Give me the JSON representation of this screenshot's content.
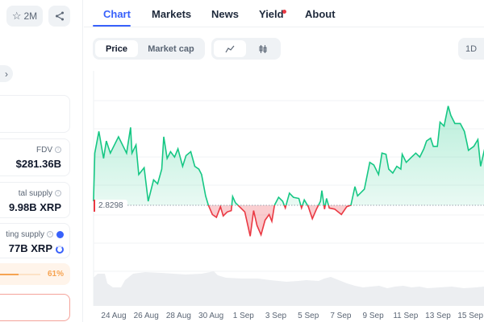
{
  "sidebar": {
    "watch_button": {
      "icon": "star-icon",
      "label": "2M"
    },
    "share_button": {
      "icon": "share-icon"
    },
    "next_button": {
      "icon": "chevron-right-icon",
      "label": "›"
    },
    "stats": [
      {
        "label": "FDV",
        "value": "$281.36B"
      },
      {
        "label": "tal supply",
        "value": "9.98B XRP"
      },
      {
        "label": "ting supply",
        "value": "77B XRP"
      }
    ],
    "progress": {
      "percent": 61,
      "label": "61%",
      "color": "#f6a351"
    }
  },
  "tabs": [
    {
      "label": "Chart",
      "active": true
    },
    {
      "label": "Markets"
    },
    {
      "label": "News"
    },
    {
      "label": "Yield",
      "badge": true
    },
    {
      "label": "About"
    }
  ],
  "toolbar": {
    "price": "Price",
    "market_cap": "Market cap",
    "line_icon": "line-chart-icon",
    "candle_icon": "candlestick-icon",
    "range": "1D"
  },
  "chart_data": {
    "type": "line",
    "baseline": 2.8298,
    "baseline_label": "2.8298",
    "up_color": "#16c784",
    "down_color": "#ea3943",
    "x_ticks": [
      "24 Aug",
      "26 Aug",
      "28 Aug",
      "30 Aug",
      "1 Sep",
      "3 Sep",
      "5 Sep",
      "7 Sep",
      "9 Sep",
      "11 Sep",
      "13 Sep",
      "15 Sep"
    ],
    "points": [
      [
        "22 Aug 18:00",
        2.844
      ],
      [
        "22 Aug 20:00",
        3.015
      ],
      [
        "23 Aug 02:00",
        3.092
      ],
      [
        "23 Aug 09:00",
        2.996
      ],
      [
        "23 Aug 13:00",
        3.058
      ],
      [
        "23 Aug 19:00",
        3.015
      ],
      [
        "24 Aug 07:00",
        3.073
      ],
      [
        "24 Aug 19:00",
        3.015
      ],
      [
        "25 Aug 01:00",
        3.106
      ],
      [
        "25 Aug 03:00",
        3.015
      ],
      [
        "25 Aug 09:00",
        3.044
      ],
      [
        "25 Aug 13:00",
        2.939
      ],
      [
        "25 Aug 21:00",
        2.963
      ],
      [
        "26 Aug 03:00",
        2.844
      ],
      [
        "26 Aug 11:00",
        2.92
      ],
      [
        "26 Aug 17:00",
        2.906
      ],
      [
        "26 Aug 23:00",
        2.958
      ],
      [
        "27 Aug 02:00",
        3.073
      ],
      [
        "27 Aug 07:00",
        2.996
      ],
      [
        "27 Aug 12:00",
        3.02
      ],
      [
        "27 Aug 18:00",
        3.001
      ],
      [
        "27 Aug 23:00",
        3.03
      ],
      [
        "28 Aug 06:00",
        2.968
      ],
      [
        "28 Aug 11:00",
        3.006
      ],
      [
        "28 Aug 18:00",
        3.02
      ],
      [
        "29 Aug 00:00",
        2.968
      ],
      [
        "29 Aug 06:00",
        2.958
      ],
      [
        "29 Aug 10:00",
        2.939
      ],
      [
        "29 Aug 16:00",
        2.863
      ],
      [
        "29 Aug 20:00",
        2.83
      ],
      [
        "30 Aug 02:00",
        2.797
      ],
      [
        "30 Aug 08:00",
        2.787
      ],
      [
        "30 Aug 14:00",
        2.825
      ],
      [
        "30 Aug 18:00",
        2.792
      ],
      [
        "31 Aug 00:00",
        2.806
      ],
      [
        "31 Aug 06:00",
        2.811
      ],
      [
        "31 Aug 08:00",
        2.861
      ],
      [
        "31 Aug 12:00",
        2.839
      ],
      [
        "31 Aug 18:00",
        2.825
      ],
      [
        "1 Sep 02:00",
        2.806
      ],
      [
        "1 Sep 10:00",
        2.72
      ],
      [
        "1 Sep 15:00",
        2.811
      ],
      [
        "1 Sep 20:00",
        2.758
      ],
      [
        "2 Sep 02:00",
        2.725
      ],
      [
        "2 Sep 08:00",
        2.777
      ],
      [
        "2 Sep 14:00",
        2.797
      ],
      [
        "2 Sep 18:00",
        2.773
      ],
      [
        "2 Sep 22:00",
        2.83
      ],
      [
        "3 Sep 04:00",
        2.858
      ],
      [
        "3 Sep 10:00",
        2.844
      ],
      [
        "3 Sep 14:00",
        2.82
      ],
      [
        "3 Sep 20:00",
        2.873
      ],
      [
        "4 Sep 02:00",
        2.858
      ],
      [
        "4 Sep 10:00",
        2.854
      ],
      [
        "4 Sep 14:00",
        2.82
      ],
      [
        "4 Sep 18:00",
        2.849
      ],
      [
        "5 Sep 00:00",
        2.825
      ],
      [
        "5 Sep 06:00",
        2.782
      ],
      [
        "5 Sep 12:00",
        2.816
      ],
      [
        "5 Sep 18:00",
        2.844
      ],
      [
        "5 Sep 20:00",
        2.882
      ],
      [
        "6 Sep 00:00",
        2.816
      ],
      [
        "6 Sep 03:00",
        2.854
      ],
      [
        "6 Sep 07:00",
        2.82
      ],
      [
        "6 Sep 15:00",
        2.816
      ],
      [
        "7 Sep 01:00",
        2.797
      ],
      [
        "7 Sep 09:00",
        2.825
      ],
      [
        "7 Sep 15:00",
        2.83
      ],
      [
        "7 Sep 21:00",
        2.896
      ],
      [
        "8 Sep 01:00",
        2.863
      ],
      [
        "8 Sep 11:00",
        2.887
      ],
      [
        "8 Sep 19:00",
        2.982
      ],
      [
        "9 Sep 01:00",
        2.973
      ],
      [
        "9 Sep 08:00",
        2.939
      ],
      [
        "9 Sep 13:00",
        3.015
      ],
      [
        "9 Sep 19:00",
        3.011
      ],
      [
        "9 Sep 23:00",
        2.958
      ],
      [
        "10 Sep 05:00",
        2.944
      ],
      [
        "10 Sep 11:00",
        2.968
      ],
      [
        "10 Sep 17:00",
        2.958
      ],
      [
        "10 Sep 19:00",
        3.011
      ],
      [
        "11 Sep 01:00",
        2.982
      ],
      [
        "11 Sep 09:00",
        3.001
      ],
      [
        "11 Sep 15:00",
        3.015
      ],
      [
        "11 Sep 21:00",
        3.001
      ],
      [
        "12 Sep 03:00",
        3.03
      ],
      [
        "12 Sep 07:00",
        3.058
      ],
      [
        "12 Sep 13:00",
        3.068
      ],
      [
        "12 Sep 17:00",
        3.039
      ],
      [
        "12 Sep 23:00",
        3.039
      ],
      [
        "13 Sep 03:00",
        3.125
      ],
      [
        "13 Sep 09:00",
        3.111
      ],
      [
        "13 Sep 15:00",
        3.182
      ],
      [
        "13 Sep 19:00",
        3.149
      ],
      [
        "14 Sep 01:00",
        3.12
      ],
      [
        "14 Sep 09:00",
        3.12
      ],
      [
        "14 Sep 15:00",
        3.092
      ],
      [
        "14 Sep 19:00",
        3.049
      ],
      [
        "14 Sep 21:00",
        3.025
      ],
      [
        "15 Sep 05:00",
        3.039
      ],
      [
        "15 Sep 11:00",
        3.063
      ],
      [
        "15 Sep 15:00",
        2.968
      ],
      [
        "15 Sep 21:00",
        3.03
      ]
    ]
  }
}
